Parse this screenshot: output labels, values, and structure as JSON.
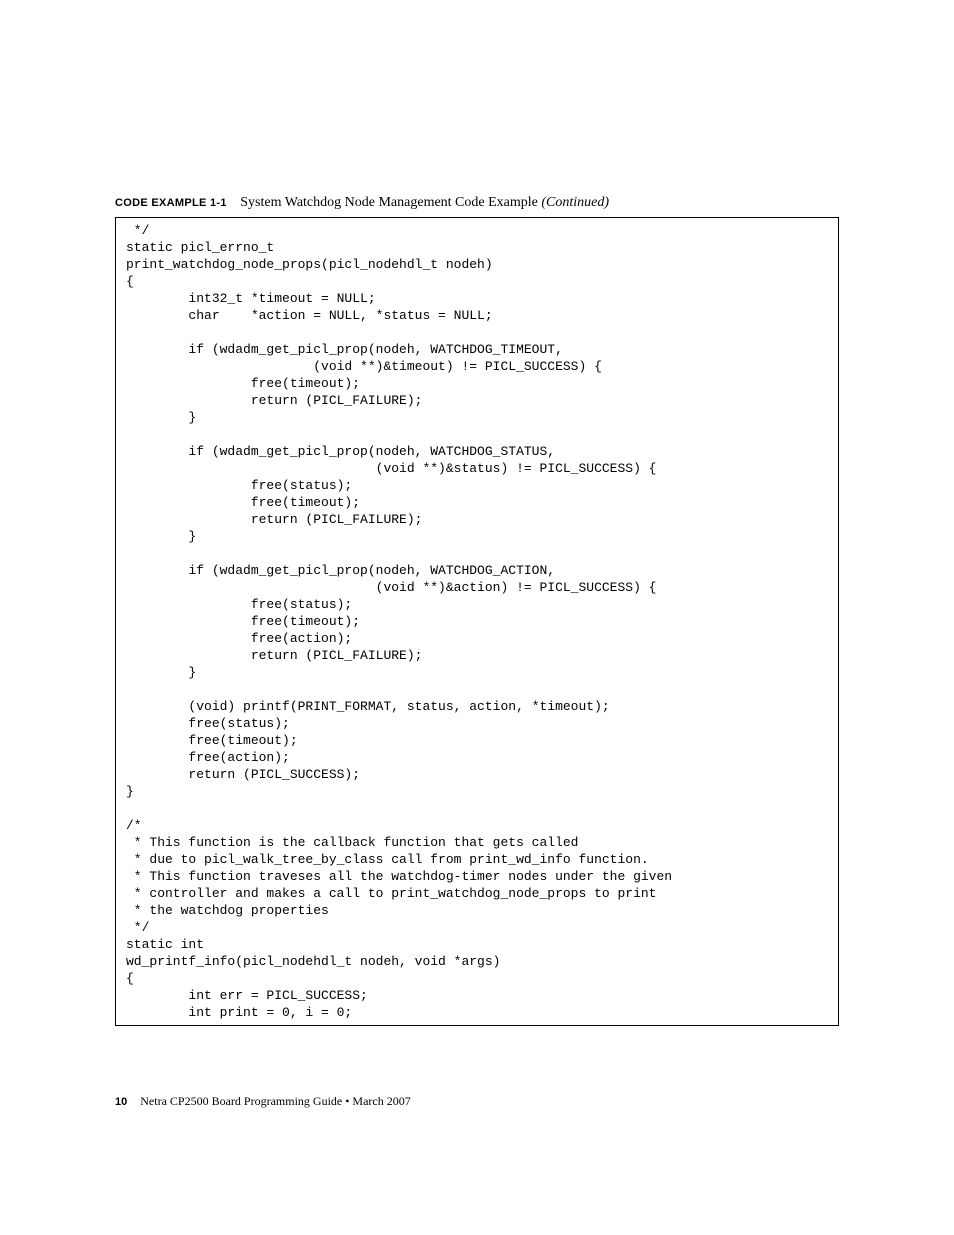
{
  "caption": {
    "label": "CODE EXAMPLE 1-1",
    "title": "System Watchdog Node Management Code Example",
    "continued": "(Continued)"
  },
  "code": " */\nstatic picl_errno_t\nprint_watchdog_node_props(picl_nodehdl_t nodeh)\n{\n        int32_t *timeout = NULL;\n        char    *action = NULL, *status = NULL;\n\n        if (wdadm_get_picl_prop(nodeh, WATCHDOG_TIMEOUT,\n                        (void **)&timeout) != PICL_SUCCESS) {\n                free(timeout);\n                return (PICL_FAILURE);\n        }\n\n        if (wdadm_get_picl_prop(nodeh, WATCHDOG_STATUS,\n                                (void **)&status) != PICL_SUCCESS) {\n                free(status);\n                free(timeout);\n                return (PICL_FAILURE);\n        }\n\n        if (wdadm_get_picl_prop(nodeh, WATCHDOG_ACTION,\n                                (void **)&action) != PICL_SUCCESS) {\n                free(status);\n                free(timeout);\n                free(action);\n                return (PICL_FAILURE);\n        }\n\n        (void) printf(PRINT_FORMAT, status, action, *timeout);\n        free(status);\n        free(timeout);\n        free(action);\n        return (PICL_SUCCESS);\n}\n\n/*\n * This function is the callback function that gets called\n * due to picl_walk_tree_by_class call from print_wd_info function.\n * This function traveses all the watchdog-timer nodes under the given\n * controller and makes a call to print_watchdog_node_props to print\n * the watchdog properties\n */\nstatic int\nwd_printf_info(picl_nodehdl_t nodeh, void *args)\n{\n        int err = PICL_SUCCESS;\n        int print = 0, i = 0;",
  "footer": {
    "pagenum": "10",
    "text": "Netra CP2500 Board Programming Guide • March 2007"
  }
}
